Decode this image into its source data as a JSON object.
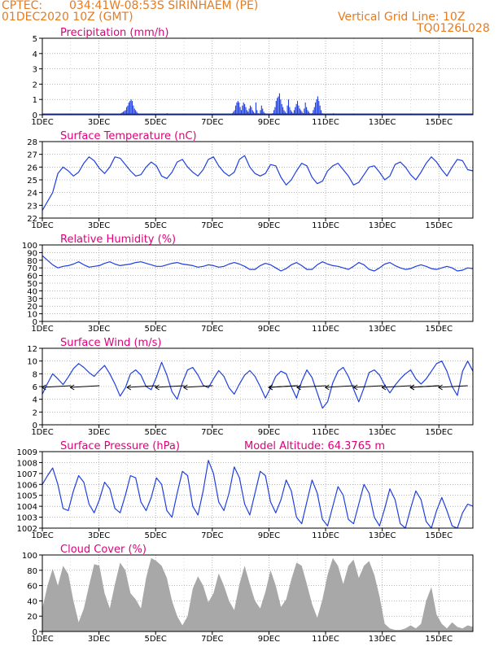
{
  "header": {
    "source": "CPTEC:",
    "location": "034:41W-08:53S  SIRINHAEM (PE)",
    "date": "01DEC2020 10Z (GMT)",
    "grid_note": "Vertical Grid Line: 10Z",
    "run_code": "TQ0126L028"
  },
  "colors": {
    "header": "#e87b1e",
    "title": "#e0007a",
    "line": "#1f3fe0",
    "cloud": "#a8a8a8"
  },
  "x_ticks": [
    "1DEC",
    "3DEC",
    "5DEC",
    "7DEC",
    "9DEC",
    "11DEC",
    "13DEC",
    "15DEC"
  ],
  "chart_data": [
    {
      "type": "bar",
      "title": "Precipitation (mm/h)",
      "ylim": [
        0,
        5
      ],
      "yticks": [
        0,
        1,
        2,
        3,
        4,
        5
      ],
      "grid": true,
      "series": [
        {
          "color": "#1f3fe0",
          "values": [
            0.02,
            0.03,
            0.02,
            0.01,
            0,
            0,
            0,
            0,
            0,
            0,
            0.02,
            0.05,
            0.03,
            0,
            0,
            0,
            0,
            0,
            0,
            0,
            0,
            0,
            0,
            0.02,
            0.01,
            0,
            0,
            0,
            0.01,
            0.02,
            0.03,
            0,
            0,
            0,
            0,
            0,
            0,
            0,
            0,
            0,
            0,
            0,
            0,
            0,
            0,
            0,
            0.01,
            0.02,
            0.02,
            0.01,
            0,
            0,
            0,
            0,
            0,
            0,
            0,
            0,
            0,
            0,
            0,
            0,
            0,
            0,
            0,
            0,
            0,
            0,
            0,
            0.05,
            0.1,
            0.15,
            0.2,
            0.25,
            0.3,
            0.5,
            0.6,
            0.8,
            0.9,
            1.0,
            0.9,
            0.6,
            0.4,
            0.3,
            0.2,
            0.1,
            0.05,
            0,
            0,
            0,
            0,
            0,
            0,
            0,
            0,
            0,
            0,
            0,
            0,
            0,
            0,
            0,
            0,
            0,
            0,
            0,
            0,
            0,
            0,
            0,
            0.05,
            0.1,
            0.05,
            0,
            0,
            0,
            0,
            0,
            0,
            0,
            0,
            0,
            0,
            0,
            0,
            0,
            0,
            0,
            0,
            0,
            0,
            0,
            0,
            0,
            0,
            0,
            0,
            0,
            0,
            0,
            0,
            0,
            0,
            0,
            0,
            0,
            0,
            0,
            0,
            0,
            0,
            0,
            0,
            0,
            0,
            0,
            0,
            0,
            0,
            0,
            0,
            0,
            0.02,
            0.05,
            0.02,
            0,
            0,
            0,
            0,
            0.1,
            0.2,
            0.3,
            0.6,
            0.8,
            0.9,
            0.8,
            0.5,
            0.3,
            0.6,
            0.8,
            0.7,
            0.5,
            0.3,
            0.2,
            0.4,
            0.6,
            0.5,
            0.3,
            0.2,
            0.1,
            0.8,
            0.3,
            0.1,
            0.05,
            0.3,
            0.6,
            0.4,
            0.2,
            0.1,
            0.05,
            0,
            0,
            0,
            0,
            0.05,
            0.1,
            0.3,
            0.5,
            0.9,
            1.1,
            1.2,
            1.4,
            1.0,
            0.7,
            0.5,
            0.3,
            0.2,
            0.1,
            0.6,
            1.0,
            0.5,
            0.3,
            0.2,
            0.1,
            0.3,
            0.5,
            0.7,
            0.9,
            0.6,
            0.4,
            0.3,
            0.2,
            0.1,
            0.4,
            0.8,
            0.5,
            0.3,
            0.2,
            0.1,
            0.05,
            0.1,
            0.3,
            0.5,
            0.8,
            1.0,
            1.2,
            0.9,
            0.6,
            0.3,
            0.1,
            0.05,
            0.02,
            0,
            0,
            0,
            0,
            0,
            0,
            0.05,
            0.1,
            0.05,
            0,
            0,
            0,
            0,
            0,
            0,
            0,
            0,
            0,
            0,
            0,
            0,
            0,
            0,
            0,
            0,
            0.02,
            0.05,
            0.02,
            0,
            0,
            0,
            0,
            0,
            0,
            0,
            0,
            0,
            0,
            0,
            0,
            0,
            0,
            0,
            0,
            0,
            0,
            0,
            0,
            0,
            0,
            0,
            0,
            0,
            0,
            0,
            0,
            0,
            0,
            0,
            0,
            0,
            0,
            0,
            0,
            0,
            0,
            0,
            0,
            0,
            0,
            0,
            0,
            0,
            0,
            0,
            0,
            0,
            0,
            0,
            0,
            0,
            0,
            0,
            0,
            0,
            0,
            0,
            0,
            0,
            0,
            0,
            0,
            0,
            0,
            0,
            0,
            0,
            0,
            0,
            0,
            0,
            0,
            0,
            0,
            0,
            0,
            0,
            0,
            0,
            0,
            0,
            0,
            0,
            0,
            0,
            0,
            0,
            0,
            0,
            0,
            0,
            0,
            0,
            0,
            0,
            0,
            0,
            0,
            0,
            0,
            0,
            0
          ]
        }
      ]
    },
    {
      "type": "line",
      "title": "Surface Temperature (nC)",
      "ylim": [
        22,
        28
      ],
      "yticks": [
        22,
        23,
        24,
        25,
        26,
        27,
        28
      ],
      "grid": true,
      "series": [
        {
          "color": "#1f3fe0",
          "values": [
            22.6,
            23.3,
            24.0,
            25.5,
            26.0,
            25.7,
            25.3,
            25.6,
            26.3,
            26.8,
            26.5,
            25.9,
            25.5,
            26.0,
            26.8,
            26.7,
            26.2,
            25.7,
            25.3,
            25.4,
            26.0,
            26.4,
            26.1,
            25.3,
            25.1,
            25.6,
            26.4,
            26.6,
            26.0,
            25.6,
            25.3,
            25.8,
            26.6,
            26.8,
            26.1,
            25.6,
            25.3,
            25.6,
            26.6,
            26.9,
            26.0,
            25.5,
            25.3,
            25.5,
            26.2,
            26.1,
            25.2,
            24.6,
            25.0,
            25.7,
            26.3,
            26.1,
            25.2,
            24.7,
            24.9,
            25.7,
            26.1,
            26.3,
            25.8,
            25.3,
            24.6,
            24.8,
            25.4,
            26.0,
            26.1,
            25.6,
            25.0,
            25.3,
            26.2,
            26.4,
            26.0,
            25.4,
            25.0,
            25.6,
            26.3,
            26.8,
            26.4,
            25.8,
            25.3,
            26.0,
            26.6,
            26.5,
            25.8,
            25.7
          ]
        }
      ]
    },
    {
      "type": "line",
      "title": "Relative Humidity (%)",
      "ylim": [
        0,
        100
      ],
      "yticks": [
        0,
        10,
        20,
        30,
        40,
        50,
        60,
        70,
        80,
        90,
        100
      ],
      "grid": true,
      "series": [
        {
          "color": "#1f3fe0",
          "values": [
            86,
            80,
            74,
            70,
            72,
            73,
            75,
            78,
            74,
            71,
            72,
            73,
            76,
            78,
            75,
            73,
            74,
            75,
            77,
            78,
            76,
            74,
            72,
            72,
            74,
            76,
            77,
            75,
            74,
            73,
            71,
            72,
            74,
            73,
            71,
            72,
            75,
            77,
            75,
            72,
            68,
            68,
            73,
            76,
            74,
            70,
            66,
            69,
            74,
            77,
            73,
            68,
            68,
            74,
            78,
            75,
            73,
            72,
            70,
            68,
            72,
            77,
            74,
            68,
            66,
            70,
            75,
            77,
            73,
            70,
            68,
            69,
            72,
            74,
            72,
            69,
            68,
            70,
            72,
            70,
            66,
            67,
            70,
            69
          ]
        }
      ]
    },
    {
      "type": "line",
      "title": "Surface Wind (m/s)",
      "ylim": [
        0,
        12
      ],
      "yticks": [
        0,
        2,
        4,
        6,
        8,
        10,
        12
      ],
      "grid": true,
      "series": [
        {
          "color": "#1f3fe0",
          "values": [
            4.8,
            6.5,
            8.0,
            7.2,
            6.3,
            7.5,
            8.8,
            9.6,
            9.0,
            8.2,
            7.6,
            8.5,
            9.3,
            8.0,
            6.4,
            4.5,
            5.8,
            8.0,
            8.6,
            7.8,
            6.0,
            5.5,
            7.5,
            9.8,
            7.8,
            5.2,
            4.0,
            6.6,
            8.6,
            9.0,
            7.8,
            6.2,
            5.8,
            7.2,
            8.5,
            7.6,
            5.8,
            4.8,
            6.4,
            7.8,
            8.5,
            7.6,
            6.0,
            4.2,
            5.8,
            7.6,
            8.4,
            8.0,
            6.0,
            4.2,
            6.8,
            8.6,
            7.4,
            5.0,
            2.6,
            3.6,
            6.6,
            8.4,
            9.0,
            7.6,
            5.6,
            3.6,
            5.8,
            8.2,
            8.6,
            7.8,
            6.2,
            5.0,
            6.2,
            7.2,
            8.0,
            8.6,
            7.2,
            6.4,
            7.2,
            8.4,
            9.6,
            10.0,
            8.4,
            6.0,
            4.6,
            8.4,
            10.0,
            8.4
          ]
        }
      ],
      "wind_arrows": [
        0,
        1,
        3,
        4,
        5,
        8,
        8,
        9,
        10,
        11,
        12,
        13,
        13,
        14
      ]
    },
    {
      "type": "line",
      "title": "Surface Pressure (hPa)",
      "annotation": "Model Altitude: 64.3765 m",
      "ylim": [
        1002,
        1009
      ],
      "yticks": [
        1002,
        1003,
        1004,
        1005,
        1006,
        1007,
        1008,
        1009
      ],
      "grid": true,
      "series": [
        {
          "color": "#1f3fe0",
          "values": [
            1006.0,
            1006.8,
            1007.5,
            1006.0,
            1003.8,
            1003.6,
            1005.4,
            1006.8,
            1006.2,
            1004.2,
            1003.4,
            1004.6,
            1006.2,
            1005.6,
            1003.8,
            1003.4,
            1005.0,
            1006.8,
            1006.6,
            1004.4,
            1003.6,
            1004.8,
            1006.6,
            1006.0,
            1003.6,
            1003.0,
            1005.2,
            1007.2,
            1006.8,
            1004.0,
            1003.2,
            1005.4,
            1008.2,
            1007.0,
            1004.4,
            1003.6,
            1005.2,
            1007.6,
            1006.6,
            1004.2,
            1003.2,
            1005.2,
            1007.2,
            1006.8,
            1004.4,
            1003.4,
            1004.6,
            1006.4,
            1005.4,
            1003.0,
            1002.4,
            1004.4,
            1006.4,
            1005.2,
            1002.8,
            1002.2,
            1004.0,
            1005.8,
            1005.0,
            1002.8,
            1002.4,
            1004.2,
            1006.0,
            1005.2,
            1003.0,
            1002.2,
            1003.8,
            1005.6,
            1004.6,
            1002.4,
            1002.0,
            1003.8,
            1005.4,
            1004.6,
            1002.6,
            1002.0,
            1003.6,
            1004.8,
            1003.6,
            1002.2,
            1002.0,
            1003.4,
            1004.2,
            1004.0
          ]
        }
      ]
    },
    {
      "type": "area",
      "title": "Cloud Cover (%)",
      "ylim": [
        0,
        100
      ],
      "yticks": [
        0,
        20,
        40,
        60,
        80,
        100
      ],
      "grid": true,
      "series": [
        {
          "color": "#a8a8a8",
          "values": [
            30,
            60,
            82,
            60,
            86,
            75,
            40,
            12,
            30,
            60,
            88,
            86,
            50,
            30,
            62,
            90,
            80,
            50,
            42,
            30,
            70,
            96,
            92,
            86,
            70,
            40,
            20,
            8,
            20,
            56,
            72,
            60,
            38,
            50,
            76,
            60,
            40,
            28,
            62,
            86,
            62,
            40,
            30,
            52,
            80,
            60,
            32,
            42,
            68,
            90,
            86,
            62,
            36,
            18,
            42,
            74,
            96,
            86,
            62,
            86,
            94,
            70,
            86,
            92,
            74,
            46,
            10,
            4,
            2,
            2,
            4,
            8,
            4,
            10,
            40,
            58,
            22,
            10,
            4,
            12,
            6,
            4,
            8,
            6
          ]
        }
      ]
    }
  ]
}
